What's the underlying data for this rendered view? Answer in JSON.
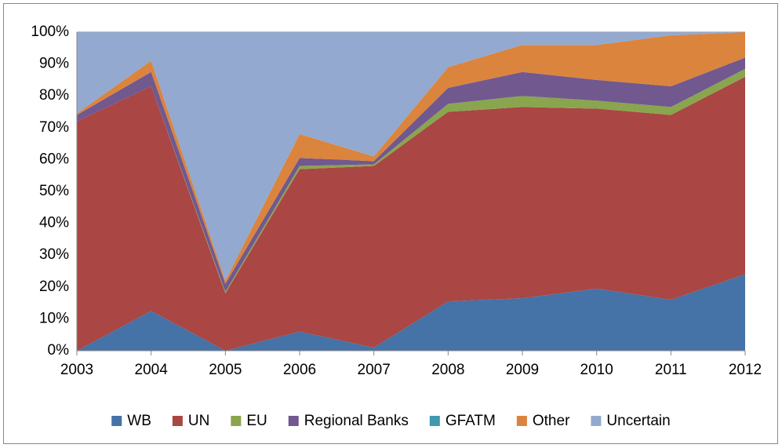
{
  "chart_data": {
    "type": "area",
    "stacked": true,
    "x": [
      2003,
      2004,
      2005,
      2006,
      2007,
      2008,
      2009,
      2010,
      2011,
      2012
    ],
    "xlim": [
      2003,
      2012
    ],
    "xticks": [
      2003,
      2004,
      2005,
      2006,
      2007,
      2008,
      2009,
      2010,
      2011,
      2012
    ],
    "ylim": [
      0,
      100
    ],
    "yticks": [
      {
        "value": 0,
        "label": "0%"
      },
      {
        "value": 10,
        "label": "10%"
      },
      {
        "value": 20,
        "label": "20%"
      },
      {
        "value": 30,
        "label": "30%"
      },
      {
        "value": 40,
        "label": "40%"
      },
      {
        "value": 50,
        "label": "50%"
      },
      {
        "value": 60,
        "label": "60%"
      },
      {
        "value": 70,
        "label": "70%"
      },
      {
        "value": 80,
        "label": "80%"
      },
      {
        "value": 90,
        "label": "90%"
      },
      {
        "value": 100,
        "label": "100%"
      }
    ],
    "grid": true,
    "legend": "bottom",
    "series": [
      {
        "name": "WB",
        "color": "#4572a7",
        "values": [
          0,
          12.5,
          0,
          6,
          1,
          15.5,
          16.5,
          19.5,
          16,
          24
        ]
      },
      {
        "name": "UN",
        "color": "#aa4643",
        "values": [
          72,
          70.5,
          18,
          51,
          57,
          59.5,
          60,
          56.5,
          58,
          62
        ]
      },
      {
        "name": "EU",
        "color": "#89a54e",
        "values": [
          0,
          0,
          0.5,
          1,
          0.5,
          2.5,
          3.5,
          2.5,
          2.5,
          2.5
        ]
      },
      {
        "name": "Regional Banks",
        "color": "#71588f",
        "values": [
          2,
          4.5,
          2.5,
          2.5,
          1,
          5,
          7.5,
          6.5,
          6.5,
          3.5
        ]
      },
      {
        "name": "GFATM",
        "color": "#4198af",
        "values": [
          0,
          0,
          0,
          0,
          0,
          0,
          0,
          0,
          0,
          0
        ]
      },
      {
        "name": "Other",
        "color": "#db843d",
        "values": [
          0.5,
          3.5,
          1,
          7.5,
          1.5,
          6.5,
          8.5,
          11,
          16,
          8
        ]
      },
      {
        "name": "Uncertain",
        "color": "#93a9cf",
        "values": [
          25.5,
          9,
          78,
          32,
          39,
          11,
          4,
          4,
          1,
          0
        ]
      }
    ]
  }
}
